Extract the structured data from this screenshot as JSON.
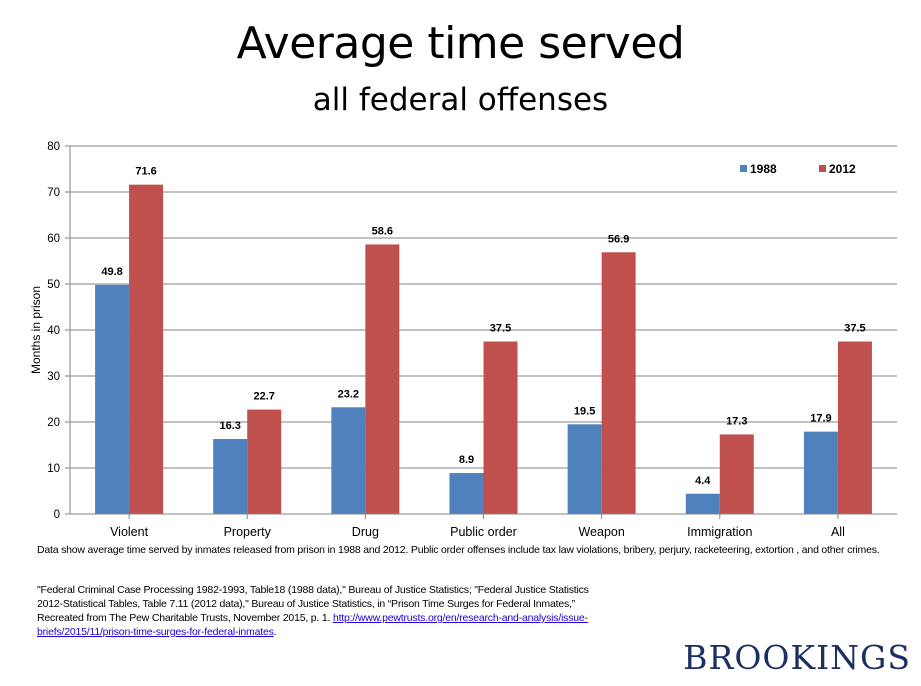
{
  "header": {
    "title": "Average time served",
    "subtitle": "all federal offenses"
  },
  "chart_data": {
    "type": "bar",
    "title": "Average time served",
    "subtitle": "all federal offenses",
    "xlabel": "",
    "ylabel": "Months in prison",
    "ylim": [
      0,
      80
    ],
    "yticks": [
      0,
      10,
      20,
      30,
      40,
      50,
      60,
      70,
      80
    ],
    "grid": true,
    "legend_position": "top-right",
    "categories": [
      "Violent",
      "Property",
      "Drug",
      "Public order",
      "Weapon",
      "Immigration",
      "All"
    ],
    "series": [
      {
        "name": "1988",
        "color": "#4f81bd",
        "values": [
          49.8,
          16.3,
          23.2,
          8.9,
          19.5,
          4.4,
          17.9
        ],
        "labels": [
          "49.8",
          "16.3",
          "23.2",
          "8.9",
          "19.5",
          "4.4",
          "17.9"
        ]
      },
      {
        "name": "2012",
        "color": "#c0504d",
        "values": [
          71.6,
          22.7,
          58.6,
          37.5,
          56.9,
          17.3,
          37.5
        ],
        "labels": [
          "71.6",
          "22.7",
          "58.6",
          "37.5",
          "56.9",
          "17.3",
          "37.5"
        ]
      }
    ]
  },
  "footer": {
    "note": "Data show average time served by inmates released from prison in 1988 and 2012. Public order offenses include tax law violations, bribery, perjury, racketeering, extortion , and other crimes.",
    "source_text": "\"Federal Criminal Case Processing 1982-1993, Table18 (1988 data),\" Bureau of Justice Statistics; \"Federal Justice Statistics 2012-Statistical Tables, Table 7.11 (2012 data),\" Bureau of Justice Statistics, in “Prison Time Surges for Federal Inmates,” Recreated from The Pew Charitable Trusts, November 2015, p. 1. ",
    "source_link": "http://www.pewtrusts.org/en/research-and-analysis/issue-briefs/2015/11/prison-time-surges-for-federal-inmates",
    "link_suffix": "."
  },
  "branding": {
    "logo_text": "BROOKINGS",
    "logo_color": "#1b2f63"
  }
}
